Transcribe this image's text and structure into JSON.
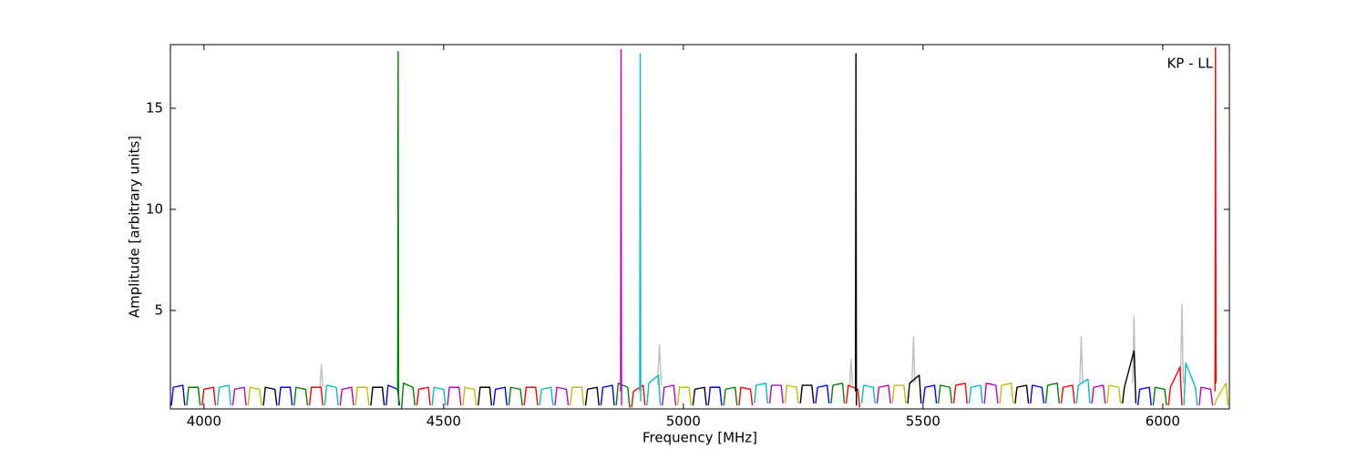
{
  "chart_data": {
    "type": "line",
    "xlabel": "Frequency [MHz]",
    "ylabel": "Amplitude [arbitrary units]",
    "annotation": "KP - LL",
    "xlim": [
      3930,
      6139
    ],
    "ylim": [
      0.13,
      18.15
    ],
    "xticks": [
      4000,
      4500,
      5000,
      5500,
      6000
    ],
    "yticks": [
      5,
      10,
      15
    ],
    "series": [
      {
        "color": "#bfbfbf",
        "x": [
          4242,
          4245,
          4248
        ],
        "values": [
          1.2,
          2.3,
          1.2
        ]
      },
      {
        "color": "#bfbfbf",
        "x": [
          4946,
          4950,
          4954
        ],
        "values": [
          1.3,
          3.3,
          1.3
        ]
      },
      {
        "color": "#bfbfbf",
        "x": [
          5347,
          5350,
          5353
        ],
        "values": [
          1.3,
          2.6,
          1.3
        ]
      },
      {
        "color": "#bfbfbf",
        "x": [
          5477,
          5480,
          5483
        ],
        "values": [
          1.4,
          3.7,
          1.4
        ]
      },
      {
        "color": "#bfbfbf",
        "x": [
          5827,
          5830,
          5833
        ],
        "values": [
          1.4,
          3.7,
          1.4
        ]
      },
      {
        "color": "#bfbfbf",
        "x": [
          5937,
          5940,
          5943
        ],
        "values": [
          1.4,
          4.7,
          1.4
        ]
      },
      {
        "color": "#bfbfbf",
        "x": [
          6037,
          6040,
          6043
        ],
        "values": [
          1.4,
          5.3,
          1.4
        ]
      },
      {
        "color": "#0000ff",
        "x": [
          3932,
          3936,
          3956,
          3960
        ],
        "values": [
          0.3,
          1.2,
          1.3,
          0.3
        ]
      },
      {
        "color": "#008000",
        "x": [
          3964,
          3968,
          3988,
          3992
        ],
        "values": [
          0.3,
          1.2,
          1.2,
          0.3
        ]
      },
      {
        "color": "#ff0000",
        "x": [
          3996,
          4000,
          4020,
          4024
        ],
        "values": [
          0.3,
          1.1,
          1.2,
          0.3
        ]
      },
      {
        "color": "#00bfbf",
        "x": [
          4028,
          4032,
          4052,
          4056
        ],
        "values": [
          0.3,
          1.2,
          1.3,
          0.3
        ]
      },
      {
        "color": "#bf00bf",
        "x": [
          4060,
          4064,
          4084,
          4088
        ],
        "values": [
          0.3,
          1.1,
          1.2,
          0.3
        ]
      },
      {
        "color": "#bfbf00",
        "x": [
          4092,
          4096,
          4116,
          4120
        ],
        "values": [
          0.3,
          1.2,
          1.1,
          0.3
        ]
      },
      {
        "color": "#000000",
        "x": [
          4124,
          4128,
          4148,
          4152
        ],
        "values": [
          0.3,
          1.2,
          1.1,
          0.3
        ]
      },
      {
        "color": "#0000ff",
        "x": [
          4156,
          4160,
          4180,
          4184
        ],
        "values": [
          0.3,
          1.2,
          1.2,
          0.3
        ]
      },
      {
        "color": "#008000",
        "x": [
          4188,
          4192,
          4212,
          4216
        ],
        "values": [
          0.3,
          1.2,
          1.1,
          0.3
        ]
      },
      {
        "color": "#ff0000",
        "x": [
          4220,
          4224,
          4244,
          4248
        ],
        "values": [
          0.3,
          1.2,
          1.2,
          0.3
        ]
      },
      {
        "color": "#00bfbf",
        "x": [
          4252,
          4256,
          4276,
          4280
        ],
        "values": [
          0.3,
          1.3,
          1.2,
          0.3
        ]
      },
      {
        "color": "#bf00bf",
        "x": [
          4284,
          4288,
          4308,
          4312
        ],
        "values": [
          0.3,
          1.1,
          1.2,
          0.3
        ]
      },
      {
        "color": "#bfbf00",
        "x": [
          4316,
          4320,
          4340,
          4344
        ],
        "values": [
          0.3,
          1.2,
          1.2,
          0.3
        ]
      },
      {
        "color": "#000000",
        "x": [
          4348,
          4352,
          4372,
          4376
        ],
        "values": [
          0.3,
          1.2,
          1.2,
          0.3
        ]
      },
      {
        "color": "#0000ff",
        "x": [
          4380,
          4384,
          4404,
          4408
        ],
        "values": [
          0.3,
          1.3,
          1.1,
          0.3
        ]
      },
      {
        "color": "#008000",
        "x": [
          4412,
          4416,
          4436,
          4440
        ],
        "values": [
          0.1,
          1.4,
          1.2,
          0.3
        ]
      },
      {
        "color": "#ff0000",
        "x": [
          4444,
          4448,
          4468,
          4472
        ],
        "values": [
          0.3,
          1.1,
          1.2,
          0.3
        ]
      },
      {
        "color": "#00bfbf",
        "x": [
          4476,
          4480,
          4500,
          4504
        ],
        "values": [
          0.3,
          1.2,
          1.1,
          0.3
        ]
      },
      {
        "color": "#bf00bf",
        "x": [
          4508,
          4512,
          4532,
          4536
        ],
        "values": [
          0.3,
          1.2,
          1.2,
          0.3
        ]
      },
      {
        "color": "#bfbf00",
        "x": [
          4540,
          4544,
          4564,
          4568
        ],
        "values": [
          0.3,
          1.2,
          1.1,
          0.3
        ]
      },
      {
        "color": "#000000",
        "x": [
          4572,
          4576,
          4596,
          4600
        ],
        "values": [
          0.3,
          1.2,
          1.2,
          0.3
        ]
      },
      {
        "color": "#0000ff",
        "x": [
          4604,
          4608,
          4628,
          4632
        ],
        "values": [
          0.3,
          1.1,
          1.2,
          0.3
        ]
      },
      {
        "color": "#008000",
        "x": [
          4636,
          4640,
          4660,
          4664
        ],
        "values": [
          0.3,
          1.2,
          1.1,
          0.3
        ]
      },
      {
        "color": "#ff0000",
        "x": [
          4668,
          4672,
          4692,
          4696
        ],
        "values": [
          0.3,
          1.2,
          1.2,
          0.3
        ]
      },
      {
        "color": "#00bfbf",
        "x": [
          4700,
          4704,
          4724,
          4728
        ],
        "values": [
          0.3,
          1.1,
          1.2,
          0.3
        ]
      },
      {
        "color": "#bf00bf",
        "x": [
          4732,
          4736,
          4756,
          4760
        ],
        "values": [
          0.3,
          1.2,
          1.1,
          0.3
        ]
      },
      {
        "color": "#bfbf00",
        "x": [
          4764,
          4768,
          4788,
          4792
        ],
        "values": [
          0.3,
          1.2,
          1.2,
          0.3
        ]
      },
      {
        "color": "#000000",
        "x": [
          4796,
          4800,
          4820,
          4824
        ],
        "values": [
          0.3,
          1.1,
          1.2,
          0.3
        ]
      },
      {
        "color": "#0000ff",
        "x": [
          4828,
          4832,
          4852,
          4856
        ],
        "values": [
          0.3,
          1.2,
          1.3,
          0.3
        ]
      },
      {
        "color": "#008000",
        "x": [
          4860,
          4864,
          4884,
          4888
        ],
        "values": [
          0.3,
          1.4,
          1.2,
          0.2
        ]
      },
      {
        "color": "#ff0000",
        "x": [
          4892,
          4896,
          4916,
          4920
        ],
        "values": [
          0.2,
          1.0,
          1.3,
          0.3
        ]
      },
      {
        "color": "#00bfbf",
        "x": [
          4924,
          4928,
          4948,
          4952
        ],
        "values": [
          0.3,
          1.4,
          1.8,
          0.3
        ]
      },
      {
        "color": "#bf00bf",
        "x": [
          4956,
          4960,
          4980,
          4984
        ],
        "values": [
          0.3,
          1.2,
          1.3,
          0.3
        ]
      },
      {
        "color": "#bfbf00",
        "x": [
          4988,
          4992,
          5012,
          5016
        ],
        "values": [
          0.3,
          1.2,
          1.2,
          0.3
        ]
      },
      {
        "color": "#000000",
        "x": [
          5020,
          5024,
          5044,
          5048
        ],
        "values": [
          0.3,
          1.1,
          1.2,
          0.3
        ]
      },
      {
        "color": "#0000ff",
        "x": [
          5052,
          5056,
          5076,
          5080
        ],
        "values": [
          0.3,
          1.2,
          1.2,
          0.3
        ]
      },
      {
        "color": "#008000",
        "x": [
          5084,
          5088,
          5108,
          5112
        ],
        "values": [
          0.3,
          1.1,
          1.2,
          0.3
        ]
      },
      {
        "color": "#ff0000",
        "x": [
          5116,
          5120,
          5140,
          5144
        ],
        "values": [
          0.3,
          1.2,
          1.1,
          0.3
        ]
      },
      {
        "color": "#00bfbf",
        "x": [
          5148,
          5152,
          5172,
          5176
        ],
        "values": [
          0.4,
          1.3,
          1.4,
          0.4
        ]
      },
      {
        "color": "#bf00bf",
        "x": [
          5180,
          5184,
          5204,
          5208
        ],
        "values": [
          0.4,
          1.3,
          1.3,
          0.4
        ]
      },
      {
        "color": "#bfbf00",
        "x": [
          5212,
          5216,
          5236,
          5240
        ],
        "values": [
          0.4,
          1.3,
          1.2,
          0.4
        ]
      },
      {
        "color": "#000000",
        "x": [
          5244,
          5248,
          5268,
          5272
        ],
        "values": [
          0.4,
          1.3,
          1.3,
          0.4
        ]
      },
      {
        "color": "#0000ff",
        "x": [
          5276,
          5280,
          5300,
          5304
        ],
        "values": [
          0.4,
          1.2,
          1.3,
          0.4
        ]
      },
      {
        "color": "#008000",
        "x": [
          5308,
          5312,
          5332,
          5336
        ],
        "values": [
          0.4,
          1.3,
          1.4,
          0.4
        ]
      },
      {
        "color": "#ff0000",
        "x": [
          5340,
          5344,
          5364,
          5368
        ],
        "values": [
          0.4,
          1.3,
          1.1,
          0.2
        ]
      },
      {
        "color": "#00bfbf",
        "x": [
          5372,
          5376,
          5396,
          5400
        ],
        "values": [
          0.4,
          1.3,
          1.2,
          0.4
        ]
      },
      {
        "color": "#bf00bf",
        "x": [
          5404,
          5408,
          5428,
          5432
        ],
        "values": [
          0.4,
          1.2,
          1.3,
          0.4
        ]
      },
      {
        "color": "#bfbf00",
        "x": [
          5436,
          5440,
          5460,
          5464
        ],
        "values": [
          0.4,
          1.3,
          1.3,
          0.4
        ]
      },
      {
        "color": "#000000",
        "x": [
          5468,
          5472,
          5492,
          5496
        ],
        "values": [
          0.4,
          1.4,
          1.8,
          0.4
        ]
      },
      {
        "color": "#0000ff",
        "x": [
          5500,
          5504,
          5524,
          5528
        ],
        "values": [
          0.4,
          1.2,
          1.3,
          0.4
        ]
      },
      {
        "color": "#008000",
        "x": [
          5532,
          5536,
          5556,
          5560
        ],
        "values": [
          0.4,
          1.3,
          1.2,
          0.4
        ]
      },
      {
        "color": "#ff0000",
        "x": [
          5564,
          5568,
          5588,
          5592
        ],
        "values": [
          0.4,
          1.3,
          1.4,
          0.4
        ]
      },
      {
        "color": "#00bfbf",
        "x": [
          5596,
          5600,
          5620,
          5624
        ],
        "values": [
          0.4,
          1.2,
          1.3,
          0.4
        ]
      },
      {
        "color": "#bf00bf",
        "x": [
          5628,
          5632,
          5652,
          5656
        ],
        "values": [
          0.4,
          1.4,
          1.3,
          0.4
        ]
      },
      {
        "color": "#bfbf00",
        "x": [
          5660,
          5664,
          5684,
          5688
        ],
        "values": [
          0.4,
          1.3,
          1.4,
          0.4
        ]
      },
      {
        "color": "#000000",
        "x": [
          5692,
          5696,
          5716,
          5720
        ],
        "values": [
          0.4,
          1.2,
          1.3,
          0.4
        ]
      },
      {
        "color": "#0000ff",
        "x": [
          5724,
          5728,
          5748,
          5752
        ],
        "values": [
          0.4,
          1.3,
          1.2,
          0.4
        ]
      },
      {
        "color": "#008000",
        "x": [
          5756,
          5760,
          5780,
          5784
        ],
        "values": [
          0.4,
          1.3,
          1.4,
          0.4
        ]
      },
      {
        "color": "#ff0000",
        "x": [
          5788,
          5792,
          5812,
          5816
        ],
        "values": [
          0.4,
          1.2,
          1.3,
          0.4
        ]
      },
      {
        "color": "#00bfbf",
        "x": [
          5820,
          5824,
          5844,
          5848
        ],
        "values": [
          0.4,
          1.3,
          1.6,
          0.4
        ]
      },
      {
        "color": "#bf00bf",
        "x": [
          5852,
          5856,
          5876,
          5880
        ],
        "values": [
          0.4,
          1.2,
          1.3,
          0.4
        ]
      },
      {
        "color": "#bfbf00",
        "x": [
          5884,
          5888,
          5908,
          5912
        ],
        "values": [
          0.4,
          1.3,
          1.2,
          0.4
        ]
      },
      {
        "color": "#000000",
        "x": [
          5916,
          5920,
          5940,
          5944
        ],
        "values": [
          0.4,
          1.2,
          3.0,
          0.4
        ]
      },
      {
        "color": "#0000ff",
        "x": [
          5948,
          5952,
          5972,
          5976
        ],
        "values": [
          0.3,
          1.1,
          1.2,
          0.3
        ]
      },
      {
        "color": "#008000",
        "x": [
          5980,
          5984,
          6004,
          6008
        ],
        "values": [
          0.3,
          1.2,
          1.1,
          0.3
        ]
      },
      {
        "color": "#ff0000",
        "x": [
          6012,
          6016,
          6036,
          6040
        ],
        "values": [
          0.3,
          1.2,
          2.2,
          0.3
        ]
      },
      {
        "color": "#00bfbf",
        "x": [
          6044,
          6048,
          6068,
          6072
        ],
        "values": [
          0.3,
          2.4,
          1.2,
          0.3
        ]
      },
      {
        "color": "#bf00bf",
        "x": [
          6076,
          6080,
          6100,
          6104
        ],
        "values": [
          0.3,
          1.2,
          1.1,
          0.3
        ]
      },
      {
        "color": "#bfbf00",
        "x": [
          6108,
          6112,
          6132,
          6136
        ],
        "values": [
          0.3,
          0.6,
          1.4,
          0.3
        ]
      },
      {
        "color": "#008000",
        "x": [
          4404,
          4405,
          4406
        ],
        "values": [
          1.0,
          17.8,
          0.3
        ]
      },
      {
        "color": "#bf00bf",
        "x": [
          4869,
          4870,
          4871
        ],
        "values": [
          1.0,
          17.9,
          0.3
        ]
      },
      {
        "color": "#00bfbf",
        "x": [
          4909,
          4910,
          4911
        ],
        "values": [
          1.0,
          17.7,
          0.5
        ]
      },
      {
        "color": "#000000",
        "x": [
          5359,
          5360,
          5361
        ],
        "values": [
          1.0,
          17.7,
          0.3
        ]
      },
      {
        "color": "#ff0000",
        "x": [
          6109,
          6110,
          6111
        ],
        "values": [
          1.0,
          18.0,
          1.4
        ]
      }
    ]
  }
}
